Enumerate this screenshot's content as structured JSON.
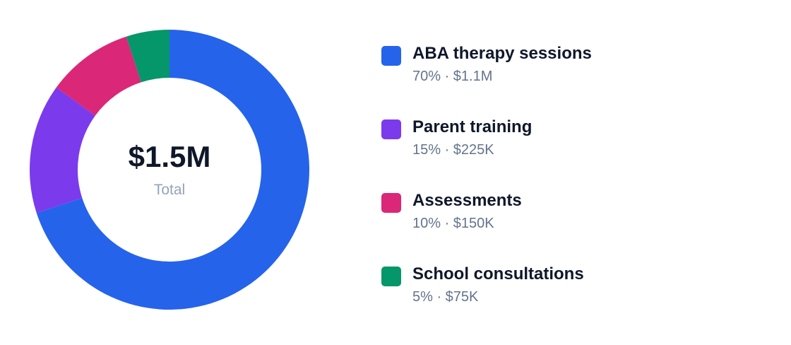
{
  "chart_data": {
    "type": "pie",
    "variant": "donut",
    "center": {
      "value": "$1.5M",
      "label": "Total"
    },
    "slices": [
      {
        "name": "ABA therapy sessions",
        "percent": 70,
        "detail": "70% · $1.1M",
        "color": "#2563eb"
      },
      {
        "name": "Parent training",
        "percent": 15,
        "detail": "15% · $225K",
        "color": "#7c3aed"
      },
      {
        "name": "Assessments",
        "percent": 10,
        "detail": "10% · $150K",
        "color": "#db2777"
      },
      {
        "name": "School consultations",
        "percent": 5,
        "detail": "5% · $75K",
        "color": "#059669"
      }
    ],
    "legend_position": "right"
  }
}
